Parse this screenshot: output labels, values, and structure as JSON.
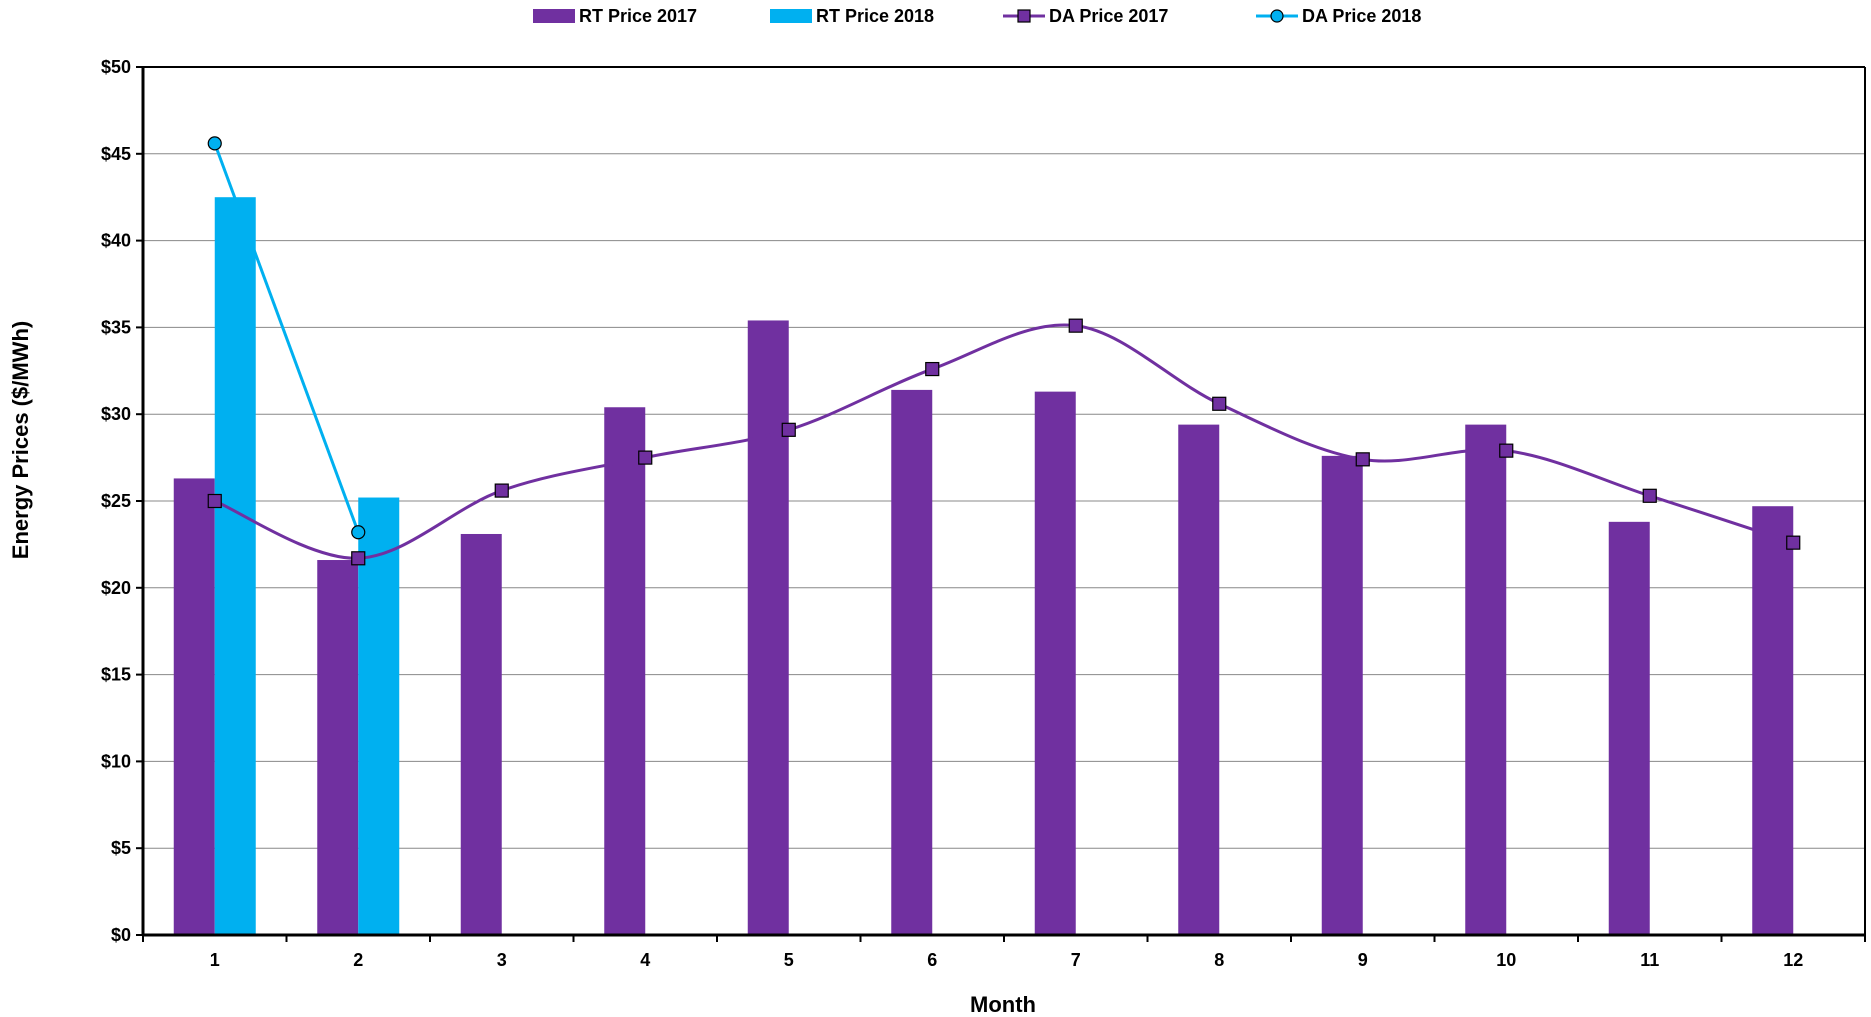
{
  "chart_data": {
    "type": "bar",
    "title": "",
    "xlabel": "Month",
    "ylabel": "Energy Prices ($/MWh)",
    "ylim": [
      0,
      50
    ],
    "y_ticks": [
      0,
      5,
      10,
      15,
      20,
      25,
      30,
      35,
      40,
      45,
      50
    ],
    "y_tick_labels": [
      "$0",
      "$5",
      "$10",
      "$15",
      "$20",
      "$25",
      "$30",
      "$35",
      "$40",
      "$45",
      "$50"
    ],
    "categories": [
      "1",
      "2",
      "3",
      "4",
      "5",
      "6",
      "7",
      "8",
      "9",
      "10",
      "11",
      "12"
    ],
    "grid": true,
    "legend_position": "top",
    "bar_series": [
      {
        "name": "RT Price 2017",
        "color": "#7030A0",
        "values": [
          26.3,
          21.6,
          23.1,
          30.4,
          35.4,
          31.4,
          31.3,
          29.4,
          27.6,
          29.4,
          23.8,
          24.7
        ]
      },
      {
        "name": "RT Price 2018",
        "color": "#00B0F0",
        "values": [
          42.5,
          25.2,
          null,
          null,
          null,
          null,
          null,
          null,
          null,
          null,
          null,
          null
        ]
      }
    ],
    "line_series": [
      {
        "name": "DA Price 2017",
        "color": "#7030A0",
        "marker": "square",
        "smooth": true,
        "values": [
          25.0,
          21.7,
          25.6,
          27.5,
          29.1,
          32.6,
          35.1,
          30.6,
          27.4,
          27.9,
          25.3,
          22.6
        ]
      },
      {
        "name": "DA Price 2018",
        "color": "#00B0F0",
        "marker": "circle",
        "smooth": false,
        "values": [
          45.6,
          23.2,
          null,
          null,
          null,
          null,
          null,
          null,
          null,
          null,
          null,
          null
        ]
      }
    ]
  }
}
